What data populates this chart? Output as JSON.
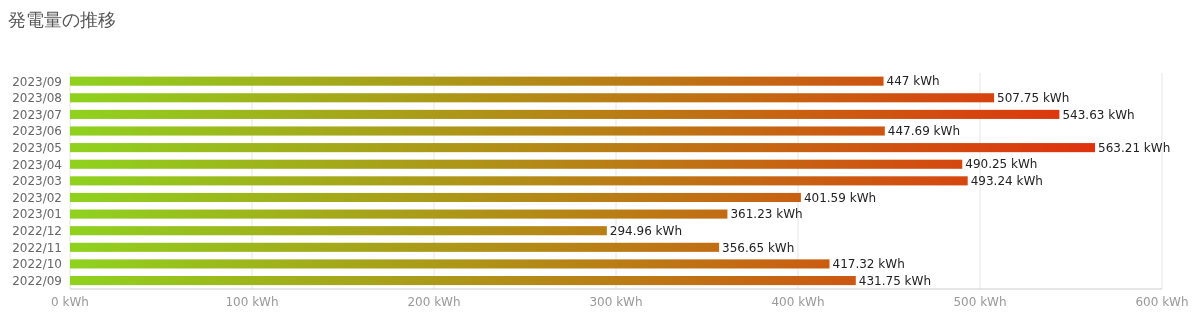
{
  "chart_data": {
    "type": "bar",
    "orientation": "horizontal",
    "title": "発電量の推移",
    "categories": [
      "2023/09",
      "2023/08",
      "2023/07",
      "2023/06",
      "2023/05",
      "2023/04",
      "2023/03",
      "2023/02",
      "2023/01",
      "2022/12",
      "2022/11",
      "2022/10",
      "2022/09"
    ],
    "values": [
      447,
      507.75,
      543.63,
      447.69,
      563.21,
      490.25,
      493.24,
      401.59,
      361.23,
      294.96,
      356.65,
      417.32,
      431.75
    ],
    "value_labels": [
      "447 kWh",
      "507.75 kWh",
      "543.63 kWh",
      "447.69 kWh",
      "563.21 kWh",
      "490.25 kWh",
      "493.24 kWh",
      "401.59 kWh",
      "361.23 kWh",
      "294.96 kWh",
      "356.65 kWh",
      "417.32 kWh",
      "431.75 kWh"
    ],
    "xlim": [
      0,
      600
    ],
    "xticks": [
      {
        "value": 0,
        "label": "0 kWh"
      },
      {
        "value": 100,
        "label": "100 kWh"
      },
      {
        "value": 200,
        "label": "200 kWh"
      },
      {
        "value": 300,
        "label": "300 kWh"
      },
      {
        "value": 400,
        "label": "400 kWh"
      },
      {
        "value": 500,
        "label": "500 kWh"
      },
      {
        "value": 600,
        "label": "600 kWh"
      }
    ],
    "grid": "x",
    "legend": false
  }
}
